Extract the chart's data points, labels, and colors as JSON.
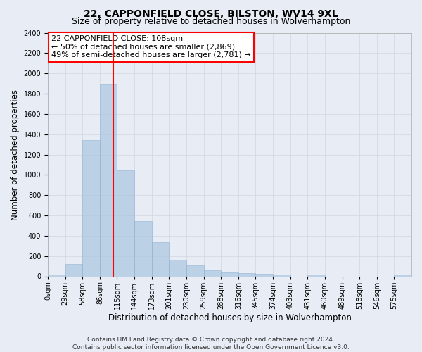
{
  "title": "22, CAPPONFIELD CLOSE, BILSTON, WV14 9XL",
  "subtitle": "Size of property relative to detached houses in Wolverhampton",
  "xlabel": "Distribution of detached houses by size in Wolverhampton",
  "ylabel": "Number of detached properties",
  "footer_line1": "Contains HM Land Registry data © Crown copyright and database right 2024.",
  "footer_line2": "Contains public sector information licensed under the Open Government Licence v3.0.",
  "bin_labels": [
    "0sqm",
    "29sqm",
    "58sqm",
    "86sqm",
    "115sqm",
    "144sqm",
    "173sqm",
    "201sqm",
    "230sqm",
    "259sqm",
    "288sqm",
    "316sqm",
    "345sqm",
    "374sqm",
    "403sqm",
    "431sqm",
    "460sqm",
    "489sqm",
    "518sqm",
    "546sqm",
    "575sqm"
  ],
  "bar_values": [
    15,
    120,
    1340,
    1890,
    1045,
    545,
    335,
    165,
    110,
    60,
    35,
    28,
    25,
    18,
    0,
    20,
    0,
    0,
    0,
    0,
    15
  ],
  "bar_color": "#aac4e0",
  "bar_edgecolor": "#8ab0d0",
  "bar_alpha": 0.7,
  "grid_color": "#d0d5e0",
  "background_color": "#e8edf5",
  "vline_color": "red",
  "ylim": [
    0,
    2400
  ],
  "yticks": [
    0,
    200,
    400,
    600,
    800,
    1000,
    1200,
    1400,
    1600,
    1800,
    2000,
    2200,
    2400
  ],
  "annotation_text": "22 CAPPONFIELD CLOSE: 108sqm\n← 50% of detached houses are smaller (2,869)\n49% of semi-detached houses are larger (2,781) →",
  "annotation_box_color": "white",
  "annotation_box_edgecolor": "red",
  "title_fontsize": 10,
  "subtitle_fontsize": 9,
  "axis_fontsize": 8.5,
  "tick_fontsize": 7,
  "annotation_fontsize": 8,
  "footer_fontsize": 6.5
}
